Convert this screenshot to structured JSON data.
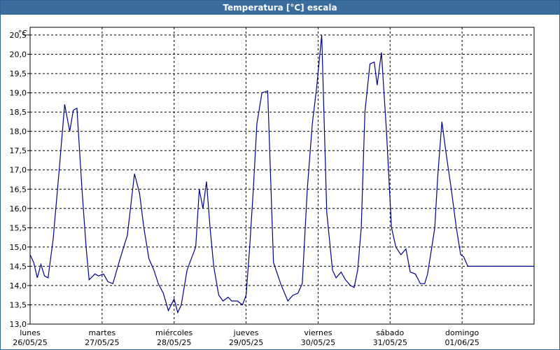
{
  "window": {
    "title": "Temperatura [°C] escala"
  },
  "chart_data": {
    "type": "line",
    "title": "Temperatura [°C] escala",
    "ylabel": "°C",
    "ylim": [
      13.0,
      20.7
    ],
    "yticks": [
      13.0,
      13.5,
      14.0,
      14.5,
      15.0,
      15.5,
      16.0,
      16.5,
      17.0,
      17.5,
      18.0,
      18.5,
      19.0,
      19.5,
      20.0,
      20.5
    ],
    "ytick_labels": [
      "13,0",
      "13,5",
      "14,0",
      "14,5",
      "15,0",
      "15,5",
      "16,0",
      "16,5",
      "17,0",
      "17,5",
      "18,0",
      "18,5",
      "19,0",
      "19,5",
      "20,0",
      "20,5"
    ],
    "xlim": [
      0,
      7
    ],
    "day_labels": [
      {
        "day": "lunes",
        "date": "26/05/25"
      },
      {
        "day": "martes",
        "date": "27/05/25"
      },
      {
        "day": "miércoles",
        "date": "28/05/25"
      },
      {
        "day": "jueves",
        "date": "29/05/25"
      },
      {
        "day": "viernes",
        "date": "30/05/25"
      },
      {
        "day": "sábado",
        "date": "31/05/25"
      },
      {
        "day": "domingo",
        "date": "01/06/25"
      }
    ],
    "grid": true,
    "line_color": "#00008b",
    "series": [
      {
        "x": [
          0.0,
          0.05,
          0.1,
          0.15,
          0.2,
          0.25,
          0.32,
          0.4,
          0.48,
          0.55,
          0.6,
          0.65,
          0.72,
          0.78,
          0.82,
          0.9,
          0.95,
          1.02,
          1.08,
          1.15,
          1.25,
          1.3,
          1.35,
          1.45,
          1.52,
          1.58,
          1.65,
          1.72,
          1.78,
          1.85,
          1.92,
          2.0,
          2.05,
          2.1,
          2.18,
          2.22,
          2.3,
          2.35,
          2.4,
          2.45,
          2.5,
          2.55,
          2.62,
          2.68,
          2.75,
          2.8,
          2.88,
          2.95,
          3.0,
          3.05,
          3.1,
          3.15,
          3.22,
          3.3,
          3.38,
          3.48,
          3.58,
          3.65,
          3.72,
          3.78,
          3.85,
          3.92,
          3.98,
          4.05,
          4.12,
          4.2,
          4.25,
          4.32,
          4.38,
          4.45,
          4.5,
          4.55,
          4.6,
          4.65,
          4.72,
          4.78,
          4.82,
          4.88,
          4.95,
          5.02,
          5.08,
          5.15,
          5.22,
          5.28,
          5.35,
          5.42,
          5.48,
          5.52,
          5.58,
          5.62,
          5.66,
          5.72,
          5.78,
          5.85,
          5.92,
          5.98,
          6.02,
          6.08,
          6.15,
          6.22,
          6.28,
          6.35,
          6.42,
          6.5,
          6.55,
          6.6,
          6.68,
          6.75,
          6.8,
          6.88,
          6.95,
          7.0
        ],
        "y": [
          14.8,
          14.6,
          14.2,
          14.55,
          14.25,
          14.2,
          15.2,
          16.9,
          18.7,
          18.0,
          18.55,
          18.6,
          16.5,
          14.95,
          14.15,
          14.3,
          14.25,
          14.3,
          14.1,
          14.05,
          14.7,
          15.0,
          15.3,
          16.9,
          16.4,
          15.5,
          14.7,
          14.4,
          14.05,
          13.8,
          13.35,
          13.65,
          13.3,
          13.5,
          14.4,
          14.6,
          15.0,
          16.5,
          16.0,
          16.7,
          15.5,
          14.5,
          13.75,
          13.6,
          13.7,
          13.6,
          13.6,
          13.5,
          13.75,
          15.0,
          16.5,
          18.2,
          19.0,
          19.05,
          14.6,
          14.05,
          13.6,
          13.75,
          13.8,
          14.05,
          16.5,
          18.2,
          19.15,
          20.5,
          15.9,
          14.4,
          14.2,
          14.35,
          14.15,
          14.0,
          13.95,
          14.4,
          15.5,
          18.5,
          19.75,
          19.8,
          19.2,
          20.05,
          18.0,
          15.5,
          15.0,
          14.8,
          14.95,
          14.35,
          14.3,
          14.05,
          14.05,
          14.3,
          15.0,
          15.5,
          16.8,
          18.25,
          17.4,
          16.5,
          15.5,
          14.8,
          14.75,
          14.5,
          14.5,
          14.5,
          14.5,
          14.5,
          14.5,
          14.5,
          14.5,
          14.5,
          14.5,
          14.5,
          14.5,
          14.5,
          14.5,
          14.5
        ]
      }
    ]
  }
}
